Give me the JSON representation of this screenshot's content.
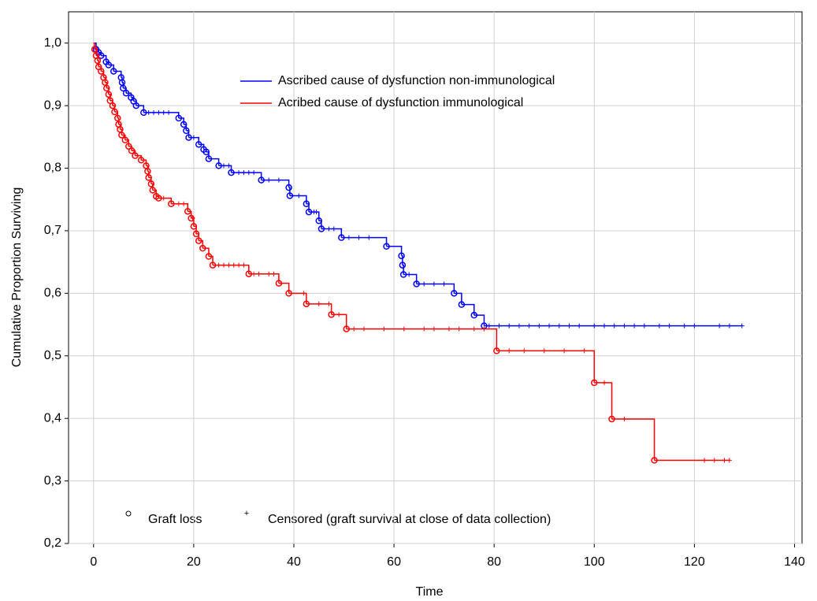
{
  "chart_data": {
    "type": "survival",
    "x_label": "Time",
    "y_label": "Cumulative Proportion Surviving",
    "xlim": [
      -5,
      141.5
    ],
    "ylim": [
      0.2,
      1.05
    ],
    "xticks": [
      0,
      20,
      40,
      60,
      80,
      100,
      120,
      140
    ],
    "yticks": [
      {
        "value": 0.2,
        "label": "0,2"
      },
      {
        "value": 0.3,
        "label": "0,3"
      },
      {
        "value": 0.4,
        "label": "0,4"
      },
      {
        "value": 0.5,
        "label": "0,5"
      },
      {
        "value": 0.6,
        "label": "0,6"
      },
      {
        "value": 0.7,
        "label": "0,7"
      },
      {
        "value": 0.8,
        "label": "0,8"
      },
      {
        "value": 0.9,
        "label": "0,9"
      },
      {
        "value": 1.0,
        "label": "1,0"
      }
    ],
    "grid": true,
    "event_label": "Graft loss",
    "censor_label": "Censored (graft survival at close of data collection)",
    "series": [
      {
        "name": "Ascribed cause of dysfunction non-immunological",
        "color": "#0000ff",
        "x": [
          0,
          0.5,
          1,
          1.5,
          2.5,
          3,
          4,
          5.5,
          5.7,
          5.9,
          6.5,
          7.5,
          8,
          8.5,
          10,
          17,
          18,
          18.5,
          19,
          21,
          22,
          22.5,
          23,
          25,
          27.5,
          33.5,
          39,
          39.2,
          42.5,
          43,
          45,
          45.5,
          49.5,
          58.5,
          61.5,
          61.7,
          61.9,
          64.5,
          72,
          73.5,
          76,
          78
        ],
        "values": [
          1.0,
          0.99,
          0.985,
          0.98,
          0.97,
          0.965,
          0.955,
          0.945,
          0.937,
          0.928,
          0.92,
          0.913,
          0.907,
          0.9,
          0.889,
          0.88,
          0.87,
          0.86,
          0.849,
          0.838,
          0.83,
          0.826,
          0.815,
          0.804,
          0.793,
          0.781,
          0.769,
          0.756,
          0.743,
          0.73,
          0.716,
          0.703,
          0.689,
          0.675,
          0.66,
          0.645,
          0.63,
          0.615,
          0.6,
          0.582,
          0.565,
          0.548
        ],
        "censored": [
          11,
          12,
          13,
          14,
          15,
          20,
          26,
          27,
          29,
          30,
          31,
          32,
          35,
          37,
          41,
          44,
          44.5,
          47,
          48,
          51,
          53,
          55,
          63,
          66,
          68,
          70,
          79,
          81,
          83,
          85,
          87,
          89,
          91,
          93,
          95,
          97,
          100,
          102,
          104,
          106,
          108,
          110,
          113,
          115,
          118,
          120,
          125,
          127,
          129.5
        ]
      },
      {
        "name": "Acribed cause of dysfunction immunological",
        "color": "#ff0000",
        "x": [
          0,
          0.2,
          0.5,
          0.8,
          1,
          1.5,
          2,
          2.3,
          2.6,
          3,
          3.3,
          3.8,
          4.2,
          4.8,
          5,
          5.3,
          5.6,
          6.3,
          7,
          7.6,
          8.3,
          9.5,
          10.5,
          10.8,
          11,
          11.5,
          11.8,
          12.5,
          13,
          15.5,
          18.8,
          19.5,
          20,
          20.5,
          21,
          21.8,
          23,
          23.8,
          31,
          37,
          39,
          42.5,
          47.5,
          50.5,
          80.5,
          100,
          103.5,
          112
        ],
        "values": [
          1.0,
          0.99,
          0.98,
          0.972,
          0.962,
          0.955,
          0.945,
          0.937,
          0.928,
          0.918,
          0.908,
          0.9,
          0.89,
          0.88,
          0.87,
          0.862,
          0.853,
          0.845,
          0.835,
          0.828,
          0.82,
          0.813,
          0.804,
          0.795,
          0.785,
          0.775,
          0.765,
          0.755,
          0.752,
          0.743,
          0.731,
          0.72,
          0.707,
          0.695,
          0.684,
          0.672,
          0.659,
          0.645,
          0.631,
          0.616,
          0.6,
          0.583,
          0.566,
          0.543,
          0.508,
          0.457,
          0.399,
          0.333
        ],
        "censored": [
          14,
          16,
          17,
          18,
          19.8,
          25,
          26,
          27,
          28,
          29,
          30,
          32,
          33,
          35,
          36,
          42,
          45,
          47,
          49,
          52,
          54,
          58,
          62,
          66,
          68,
          71,
          73,
          76,
          78,
          83,
          86,
          90,
          94,
          98,
          102,
          106,
          122,
          124,
          126,
          127
        ]
      }
    ]
  }
}
